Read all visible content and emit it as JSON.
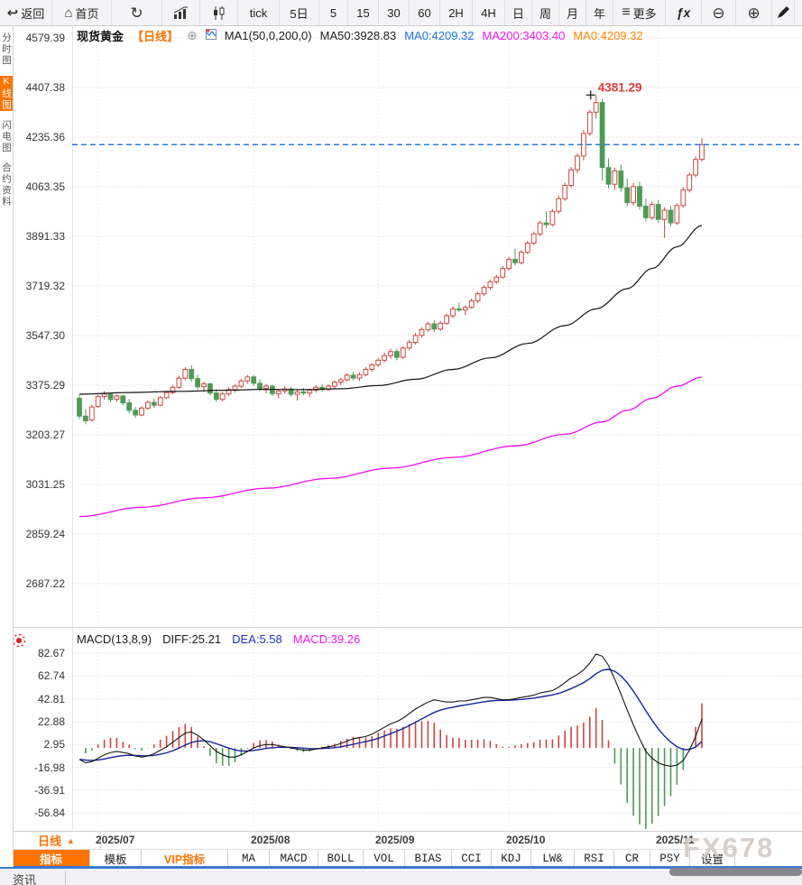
{
  "colors": {
    "up": "#c74742",
    "down": "#4e9b55",
    "ma50": "#151515",
    "ma200": "#f00cf0",
    "dea_line": "#18229c",
    "diff_line": "#151515",
    "price_line_blue": "#1c74e0",
    "accent_orange": "#ff7300",
    "annotation_red": "#e03a3a"
  },
  "toolbar": {
    "items": [
      {
        "label": "返回",
        "icon": "back-arrow-icon"
      },
      {
        "label": "首页",
        "icon": "home-icon"
      },
      {
        "label": "",
        "icon": "refresh-icon"
      },
      {
        "label": "",
        "icon": "bar-chart-icon"
      },
      {
        "label": "",
        "icon": "candlestick-icon"
      },
      {
        "label": "tick",
        "icon": ""
      },
      {
        "label": "5日",
        "icon": ""
      },
      {
        "label": "5",
        "icon": ""
      },
      {
        "label": "15",
        "icon": ""
      },
      {
        "label": "30",
        "icon": ""
      },
      {
        "label": "60",
        "icon": ""
      },
      {
        "label": "2H",
        "icon": ""
      },
      {
        "label": "4H",
        "icon": ""
      },
      {
        "label": "日",
        "icon": ""
      },
      {
        "label": "周",
        "icon": ""
      },
      {
        "label": "月",
        "icon": ""
      },
      {
        "label": "年",
        "icon": ""
      },
      {
        "label": "更多",
        "icon": "menu-icon"
      },
      {
        "label": "fx",
        "icon": "fx-icon"
      },
      {
        "label": "",
        "icon": "zoom-out-icon"
      },
      {
        "label": "",
        "icon": "zoom-in-icon"
      },
      {
        "label": "",
        "icon": "pencil-icon"
      }
    ]
  },
  "sidebar": {
    "items": [
      {
        "label": "分时图",
        "active": false
      },
      {
        "label": "K线图",
        "active": true
      },
      {
        "label": "闪电图",
        "active": false
      },
      {
        "label": "合约资料",
        "active": false
      }
    ]
  },
  "chart_header": {
    "symbol": "现货黄金",
    "period": "【日线】",
    "plus": "⊕",
    "ma_settings": "MA1(50,0,200,0)",
    "ma50_label": "MA50:3928.83",
    "ma0_blue_label": "MA0:4209.32",
    "ma200_label": "MA200:3403.40",
    "ma0_orange_label": "MA0:4209.32"
  },
  "macd_header": {
    "title": "MACD(13,8,9)",
    "diff_label": "DIFF:25.21",
    "dea_label": "DEA:5.58",
    "macd_label": "MACD:39.26"
  },
  "bottom": {
    "period_tab": "日线",
    "period_tab_arrow": "▲",
    "indicator_tabs": [
      {
        "label": "指标",
        "style": "active",
        "cn": true
      },
      {
        "label": "模板",
        "style": "",
        "cn": true
      },
      {
        "label": "VIP指标",
        "style": "vip",
        "cn": true
      },
      {
        "label": "MA",
        "style": "",
        "cn": false
      },
      {
        "label": "MACD",
        "style": "",
        "cn": false
      },
      {
        "label": "BOLL",
        "style": "",
        "cn": false
      },
      {
        "label": "VOL",
        "style": "",
        "cn": false
      },
      {
        "label": "BIAS",
        "style": "",
        "cn": false
      },
      {
        "label": "CCI",
        "style": "",
        "cn": false
      },
      {
        "label": "KDJ",
        "style": "",
        "cn": false
      },
      {
        "label": "LW&",
        "style": "",
        "cn": false
      },
      {
        "label": "RSI",
        "style": "",
        "cn": false
      },
      {
        "label": "CR",
        "style": "",
        "cn": false
      },
      {
        "label": "PSY",
        "style": "",
        "cn": false
      },
      {
        "label": "设置",
        "style": "",
        "cn": true
      }
    ]
  },
  "news_strip": {
    "label": "资讯"
  },
  "watermark": "FX678",
  "chart_data": {
    "type": "candlestick+macd",
    "title": "现货黄金 日线 (Spot Gold Daily)",
    "legend": [
      "MA50",
      "MA200",
      "DIFF",
      "DEA",
      "MACD"
    ],
    "y_axis_main": [
      4579.39,
      4407.38,
      4235.36,
      4063.35,
      3891.33,
      3719.32,
      3547.3,
      3375.29,
      3203.27,
      3031.25,
      2859.24,
      2687.22
    ],
    "y_axis_macd": [
      82.67,
      62.74,
      42.81,
      22.88,
      2.95,
      -16.98,
      -36.91,
      -56.84
    ],
    "x_labels": [
      {
        "label": "2025/07",
        "index": 3
      },
      {
        "label": "2025/08",
        "index": 28
      },
      {
        "label": "2025/09",
        "index": 48
      },
      {
        "label": "2025/10",
        "index": 69
      },
      {
        "label": "2025/11",
        "index": 93
      }
    ],
    "current_price": 4209.32,
    "peak_annotation": {
      "value": "4381.29",
      "price": 4381.29,
      "index": 83
    },
    "ma50": {
      "final": 3928.83,
      "points": [
        [
          0,
          3344
        ],
        [
          8,
          3350
        ],
        [
          16,
          3354
        ],
        [
          24,
          3358
        ],
        [
          30,
          3361
        ],
        [
          36,
          3360
        ],
        [
          42,
          3363
        ],
        [
          48,
          3374
        ],
        [
          54,
          3396
        ],
        [
          60,
          3430
        ],
        [
          66,
          3470
        ],
        [
          72,
          3520
        ],
        [
          78,
          3582
        ],
        [
          83,
          3640
        ],
        [
          88,
          3710
        ],
        [
          92,
          3780
        ],
        [
          96,
          3855
        ],
        [
          100,
          3928.83
        ]
      ]
    },
    "ma200": {
      "final": 3403.4,
      "points": [
        [
          0,
          2920
        ],
        [
          10,
          2952
        ],
        [
          20,
          2985
        ],
        [
          30,
          3018
        ],
        [
          40,
          3052
        ],
        [
          50,
          3088
        ],
        [
          60,
          3125
        ],
        [
          70,
          3165
        ],
        [
          78,
          3205
        ],
        [
          84,
          3248
        ],
        [
          88,
          3288
        ],
        [
          92,
          3330
        ],
        [
          96,
          3372
        ],
        [
          100,
          3403.4
        ]
      ]
    },
    "candles": [
      [
        3330,
        3342,
        3258,
        3268
      ],
      [
        3268,
        3292,
        3240,
        3252
      ],
      [
        3255,
        3308,
        3250,
        3300
      ],
      [
        3302,
        3342,
        3296,
        3336
      ],
      [
        3336,
        3355,
        3326,
        3345
      ],
      [
        3345,
        3350,
        3316,
        3326
      ],
      [
        3326,
        3343,
        3318,
        3338
      ],
      [
        3338,
        3342,
        3306,
        3314
      ],
      [
        3314,
        3328,
        3278,
        3288
      ],
      [
        3288,
        3300,
        3262,
        3272
      ],
      [
        3272,
        3302,
        3268,
        3296
      ],
      [
        3296,
        3322,
        3290,
        3316
      ],
      [
        3316,
        3330,
        3296,
        3306
      ],
      [
        3306,
        3338,
        3302,
        3332
      ],
      [
        3332,
        3356,
        3328,
        3350
      ],
      [
        3350,
        3376,
        3344,
        3368
      ],
      [
        3368,
        3408,
        3362,
        3400
      ],
      [
        3400,
        3438,
        3392,
        3430
      ],
      [
        3430,
        3445,
        3388,
        3398
      ],
      [
        3398,
        3412,
        3360,
        3370
      ],
      [
        3370,
        3388,
        3352,
        3380
      ],
      [
        3380,
        3384,
        3340,
        3348
      ],
      [
        3348,
        3362,
        3318,
        3326
      ],
      [
        3326,
        3352,
        3320,
        3345
      ],
      [
        3345,
        3368,
        3338,
        3360
      ],
      [
        3360,
        3380,
        3350,
        3372
      ],
      [
        3372,
        3398,
        3366,
        3390
      ],
      [
        3390,
        3412,
        3380,
        3404
      ],
      [
        3404,
        3410,
        3372,
        3382
      ],
      [
        3382,
        3396,
        3356,
        3364
      ],
      [
        3364,
        3380,
        3348,
        3372
      ],
      [
        3372,
        3376,
        3338,
        3346
      ],
      [
        3346,
        3362,
        3330,
        3355
      ],
      [
        3355,
        3372,
        3346,
        3362
      ],
      [
        3362,
        3370,
        3336,
        3344
      ],
      [
        3344,
        3360,
        3322,
        3352
      ],
      [
        3352,
        3366,
        3340,
        3348
      ],
      [
        3348,
        3364,
        3334,
        3358
      ],
      [
        3358,
        3376,
        3350,
        3368
      ],
      [
        3368,
        3380,
        3352,
        3360
      ],
      [
        3360,
        3378,
        3354,
        3372
      ],
      [
        3372,
        3392,
        3364,
        3386
      ],
      [
        3386,
        3402,
        3376,
        3394
      ],
      [
        3394,
        3416,
        3388,
        3410
      ],
      [
        3410,
        3422,
        3392,
        3400
      ],
      [
        3400,
        3418,
        3390,
        3412
      ],
      [
        3412,
        3438,
        3406,
        3430
      ],
      [
        3430,
        3452,
        3422,
        3446
      ],
      [
        3446,
        3470,
        3438,
        3462
      ],
      [
        3462,
        3488,
        3454,
        3478
      ],
      [
        3478,
        3502,
        3468,
        3492
      ],
      [
        3492,
        3500,
        3462,
        3472
      ],
      [
        3472,
        3510,
        3466,
        3504
      ],
      [
        3504,
        3532,
        3496,
        3524
      ],
      [
        3524,
        3556,
        3516,
        3548
      ],
      [
        3548,
        3576,
        3540,
        3568
      ],
      [
        3568,
        3596,
        3560,
        3588
      ],
      [
        3588,
        3600,
        3560,
        3570
      ],
      [
        3570,
        3598,
        3564,
        3590
      ],
      [
        3590,
        3624,
        3584,
        3616
      ],
      [
        3616,
        3648,
        3608,
        3640
      ],
      [
        3640,
        3662,
        3628,
        3636
      ],
      [
        3636,
        3652,
        3618,
        3645
      ],
      [
        3645,
        3676,
        3640,
        3668
      ],
      [
        3668,
        3700,
        3660,
        3692
      ],
      [
        3692,
        3722,
        3684,
        3714
      ],
      [
        3714,
        3742,
        3706,
        3734
      ],
      [
        3734,
        3758,
        3726,
        3750
      ],
      [
        3750,
        3788,
        3744,
        3780
      ],
      [
        3780,
        3820,
        3772,
        3812
      ],
      [
        3812,
        3848,
        3790,
        3800
      ],
      [
        3800,
        3844,
        3794,
        3836
      ],
      [
        3836,
        3876,
        3830,
        3868
      ],
      [
        3868,
        3908,
        3860,
        3900
      ],
      [
        3900,
        3946,
        3892,
        3938
      ],
      [
        3938,
        3978,
        3920,
        3932
      ],
      [
        3932,
        3986,
        3926,
        3978
      ],
      [
        3978,
        4032,
        3970,
        4022
      ],
      [
        4022,
        4078,
        4014,
        4068
      ],
      [
        4068,
        4132,
        4060,
        4122
      ],
      [
        4122,
        4180,
        4110,
        4170
      ],
      [
        4170,
        4260,
        4155,
        4248
      ],
      [
        4248,
        4330,
        4240,
        4322
      ],
      [
        4322,
        4381.29,
        4300,
        4355
      ],
      [
        4355,
        4368,
        4085,
        4130
      ],
      [
        4130,
        4162,
        4058,
        4072
      ],
      [
        4072,
        4130,
        4052,
        4118
      ],
      [
        4118,
        4140,
        4046,
        4060
      ],
      [
        4060,
        4092,
        3996,
        4008
      ],
      [
        4008,
        4076,
        3998,
        4064
      ],
      [
        4064,
        4080,
        3984,
        3996
      ],
      [
        3996,
        4022,
        3942,
        3956
      ],
      [
        3956,
        4012,
        3948,
        4002
      ],
      [
        4002,
        4018,
        3938,
        3950
      ],
      [
        3950,
        3992,
        3886,
        3982
      ],
      [
        3982,
        3996,
        3926,
        3938
      ],
      [
        3938,
        4006,
        3930,
        3998
      ],
      [
        3998,
        4062,
        3990,
        4052
      ],
      [
        4052,
        4112,
        4044,
        4104
      ],
      [
        4104,
        4168,
        4096,
        4158
      ],
      [
        4158,
        4232,
        4150,
        4209.32
      ]
    ],
    "macd": {
      "params": "(13,8,9)",
      "final": {
        "diff": 25.21,
        "dea": 5.58,
        "macd": 39.26
      },
      "diff": [
        -10,
        -13,
        -12,
        -9,
        -6,
        -4,
        -3,
        -4,
        -5,
        -7,
        -8,
        -7,
        -5,
        -2,
        1,
        5,
        9,
        13,
        14,
        11,
        7,
        2,
        -3,
        -6,
        -8,
        -8,
        -6,
        -3,
        0,
        2,
        3,
        3,
        2,
        1,
        0,
        -1,
        -2,
        -2,
        -1,
        0,
        1,
        2,
        4,
        6,
        8,
        9,
        10,
        12,
        15,
        18,
        21,
        23,
        26,
        30,
        34,
        37,
        40,
        42,
        41,
        40,
        40,
        41,
        41,
        42,
        43,
        44,
        44,
        43,
        42,
        42,
        43,
        44,
        45,
        46,
        48,
        49,
        50,
        53,
        57,
        61,
        64,
        68,
        74,
        82,
        80,
        72,
        60,
        47,
        33,
        20,
        8,
        -3,
        -9,
        -13,
        -15,
        -16,
        -15,
        -11,
        -2,
        10,
        25.21
      ]
    }
  }
}
